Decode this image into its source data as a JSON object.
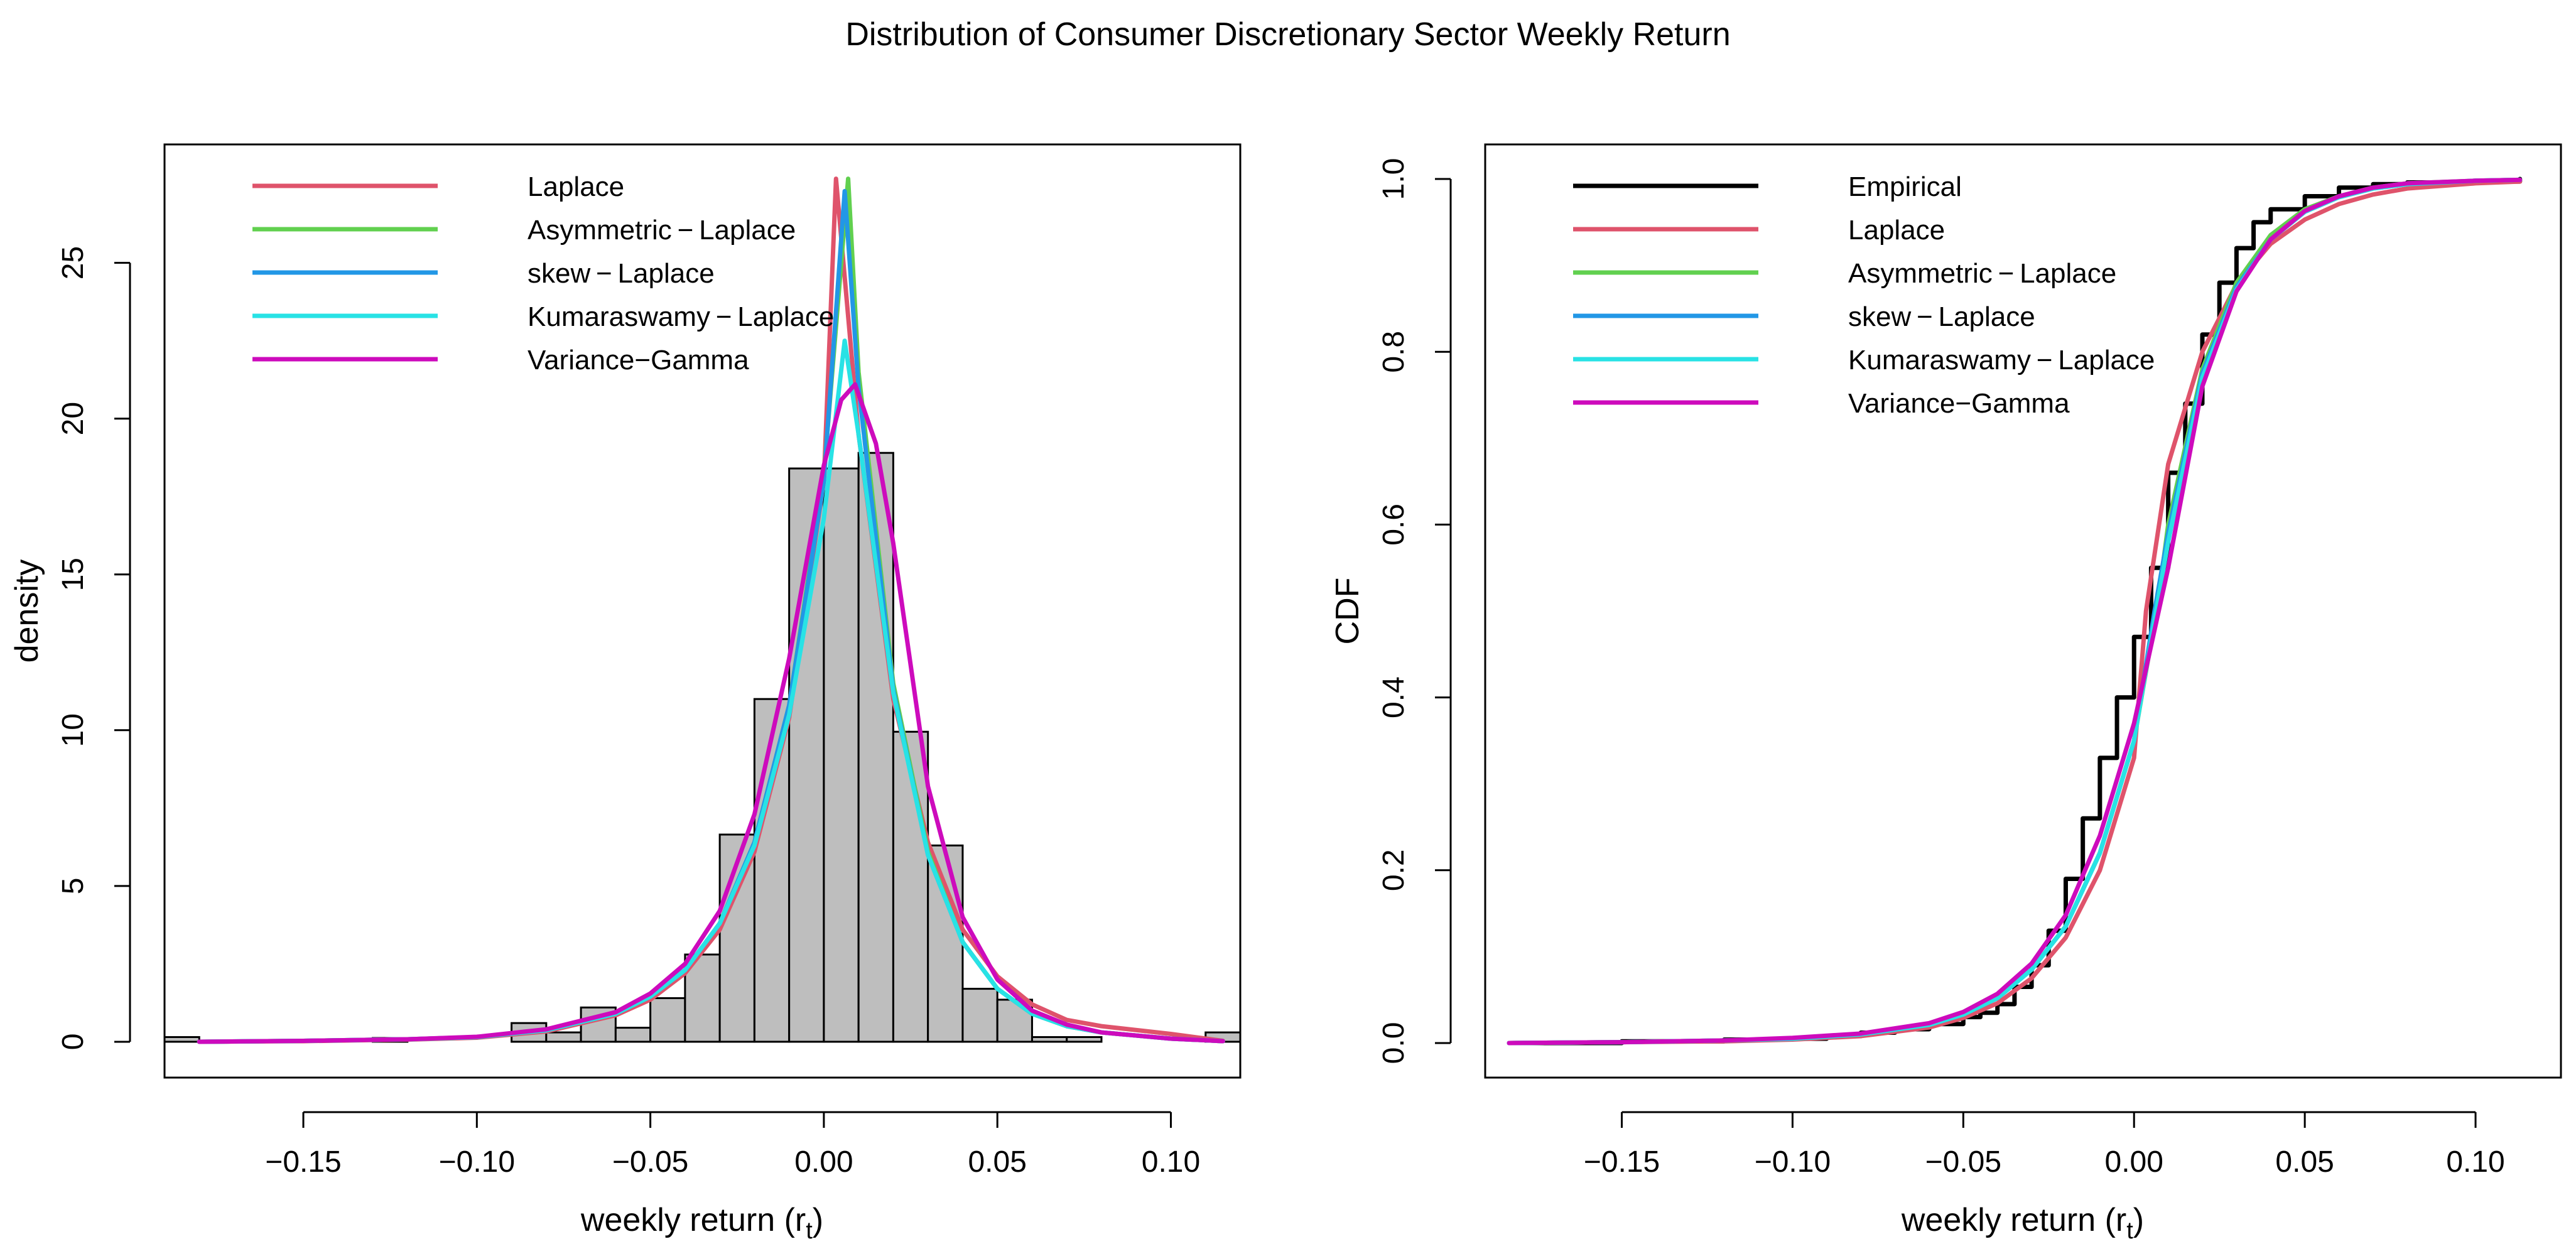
{
  "title": "Distribution of Consumer Discretionary Sector Weekly Return",
  "colors": {
    "Empirical": "#000000",
    "Laplace": "#DF536B",
    "Asymmetric-Laplace": "#61D04F",
    "skew-Laplace": "#2297E6",
    "Kumaraswamy-Laplace": "#28E2E5",
    "Variance-Gamma": "#CD0BBC",
    "histogram_fill": "#BEBEBE"
  },
  "chart_data": [
    {
      "type": "bar",
      "panel": "density",
      "xlabel": "weekly return",
      "xlabel_symbol": "r",
      "xlabel_subscript": "t",
      "ylabel": "density",
      "xlim": [
        -0.19,
        0.12
      ],
      "ylim": [
        -1.15,
        28.8
      ],
      "xticks": [
        -0.15,
        -0.1,
        -0.05,
        0.0,
        0.05,
        0.1
      ],
      "xtick_labels": [
        "−0.15",
        "−0.10",
        "−0.05",
        "0.00",
        "0.05",
        "0.10"
      ],
      "yticks": [
        0,
        5,
        10,
        15,
        20,
        25
      ],
      "ytick_labels": [
        "0",
        "5",
        "10",
        "15",
        "20",
        "25"
      ],
      "grid": false,
      "legend_position": "top-left",
      "legend": [
        {
          "label": "Laplace",
          "key": "Laplace"
        },
        {
          "label": "Asymmetric − Laplace",
          "key": "Asymmetric-Laplace"
        },
        {
          "label": "skew − Laplace",
          "key": "skew-Laplace"
        },
        {
          "label": "Kumaraswamy − Laplace",
          "key": "Kumaraswamy-Laplace"
        },
        {
          "label": "Variance−Gamma",
          "key": "Variance-Gamma"
        }
      ],
      "histogram": {
        "bins": [
          [
            -0.19,
            -0.18,
            0.15
          ],
          [
            -0.18,
            -0.17,
            0
          ],
          [
            -0.17,
            -0.16,
            0
          ],
          [
            -0.16,
            -0.15,
            0
          ],
          [
            -0.15,
            -0.14,
            0
          ],
          [
            -0.14,
            -0.13,
            0
          ],
          [
            -0.13,
            -0.12,
            0.12
          ],
          [
            -0.12,
            -0.11,
            0
          ],
          [
            -0.11,
            -0.1,
            0
          ],
          [
            -0.1,
            -0.09,
            0
          ],
          [
            -0.09,
            -0.08,
            0.6
          ],
          [
            -0.08,
            -0.07,
            0.3
          ],
          [
            -0.07,
            -0.06,
            1.1
          ],
          [
            -0.06,
            -0.05,
            0.45
          ],
          [
            -0.05,
            -0.04,
            1.4
          ],
          [
            -0.04,
            -0.03,
            2.8
          ],
          [
            -0.03,
            -0.02,
            6.65
          ],
          [
            -0.02,
            -0.01,
            11.0
          ],
          [
            -0.01,
            0.0,
            18.4
          ],
          [
            0.0,
            0.01,
            18.4
          ],
          [
            0.01,
            0.02,
            18.9
          ],
          [
            0.02,
            0.03,
            9.95
          ],
          [
            0.03,
            0.04,
            6.3
          ],
          [
            0.04,
            0.05,
            1.7
          ],
          [
            0.05,
            0.06,
            1.35
          ],
          [
            0.06,
            0.07,
            0.15
          ],
          [
            0.07,
            0.08,
            0.15
          ],
          [
            0.08,
            0.09,
            0
          ],
          [
            0.09,
            0.1,
            0
          ],
          [
            0.1,
            0.11,
            0
          ],
          [
            0.11,
            0.12,
            0.3
          ]
        ]
      },
      "series": [
        {
          "name": "Laplace",
          "key": "Laplace",
          "x": [
            -0.18,
            -0.15,
            -0.12,
            -0.1,
            -0.08,
            -0.06,
            -0.05,
            -0.04,
            -0.03,
            -0.02,
            -0.01,
            0.0,
            0.0035,
            0.01,
            0.02,
            0.03,
            0.04,
            0.05,
            0.06,
            0.07,
            0.08,
            0.1,
            0.115
          ],
          "y": [
            0.0,
            0.02,
            0.07,
            0.13,
            0.33,
            0.85,
            1.35,
            2.2,
            3.6,
            6.1,
            10.4,
            18.0,
            27.7,
            19.5,
            11.0,
            6.4,
            3.6,
            2.1,
            1.2,
            0.7,
            0.5,
            0.25,
            0.03
          ]
        },
        {
          "name": "Asymmetric − Laplace",
          "key": "Asymmetric-Laplace",
          "x": [
            -0.18,
            -0.15,
            -0.12,
            -0.1,
            -0.08,
            -0.06,
            -0.05,
            -0.04,
            -0.03,
            -0.02,
            -0.01,
            0.0,
            0.007,
            0.01,
            0.02,
            0.03,
            0.04,
            0.05,
            0.06,
            0.07,
            0.08,
            0.1,
            0.115
          ],
          "y": [
            0.0,
            0.03,
            0.08,
            0.15,
            0.37,
            0.9,
            1.45,
            2.3,
            3.8,
            6.4,
            10.8,
            18.2,
            27.7,
            21.5,
            11.5,
            6.1,
            3.2,
            1.7,
            0.9,
            0.5,
            0.3,
            0.1,
            0.02
          ]
        },
        {
          "name": "skew − Laplace",
          "key": "skew-Laplace",
          "x": [
            -0.18,
            -0.15,
            -0.12,
            -0.1,
            -0.08,
            -0.06,
            -0.05,
            -0.04,
            -0.03,
            -0.02,
            -0.01,
            0.0,
            0.006,
            0.01,
            0.02,
            0.03,
            0.04,
            0.05,
            0.06,
            0.07,
            0.08,
            0.1,
            0.115
          ],
          "y": [
            0.0,
            0.03,
            0.08,
            0.15,
            0.37,
            0.9,
            1.45,
            2.3,
            3.8,
            6.4,
            10.8,
            18.0,
            27.3,
            21.0,
            11.3,
            6.0,
            3.2,
            1.7,
            0.9,
            0.5,
            0.3,
            0.1,
            0.02
          ]
        },
        {
          "name": "Kumaraswamy − Laplace",
          "key": "Kumaraswamy-Laplace",
          "x": [
            -0.18,
            -0.15,
            -0.12,
            -0.1,
            -0.08,
            -0.06,
            -0.05,
            -0.04,
            -0.03,
            -0.02,
            -0.01,
            0.0,
            0.006,
            0.01,
            0.02,
            0.03,
            0.04,
            0.05,
            0.06,
            0.07,
            0.08,
            0.1,
            0.115
          ],
          "y": [
            0.0,
            0.03,
            0.08,
            0.15,
            0.37,
            0.9,
            1.45,
            2.3,
            3.8,
            6.3,
            10.5,
            16.8,
            22.5,
            19.5,
            11.2,
            6.0,
            3.2,
            1.7,
            0.9,
            0.5,
            0.3,
            0.1,
            0.02
          ]
        },
        {
          "name": "Variance−Gamma",
          "key": "Variance-Gamma",
          "x": [
            -0.18,
            -0.15,
            -0.12,
            -0.1,
            -0.08,
            -0.06,
            -0.05,
            -0.04,
            -0.03,
            -0.02,
            -0.01,
            0.0,
            0.005,
            0.009,
            0.015,
            0.02,
            0.03,
            0.04,
            0.05,
            0.06,
            0.07,
            0.08,
            0.1,
            0.115
          ],
          "y": [
            0.0,
            0.03,
            0.08,
            0.16,
            0.4,
            0.95,
            1.55,
            2.5,
            4.2,
            7.3,
            12.3,
            18.5,
            20.6,
            21.1,
            19.2,
            16.0,
            8.2,
            4.0,
            2.0,
            1.0,
            0.55,
            0.3,
            0.1,
            0.02
          ]
        }
      ]
    },
    {
      "type": "line",
      "panel": "cdf",
      "xlabel": "weekly return",
      "xlabel_symbol": "r",
      "xlabel_subscript": "t",
      "ylabel": "CDF",
      "xlim": [
        -0.19,
        0.125
      ],
      "ylim": [
        -0.04,
        1.04
      ],
      "xticks": [
        -0.15,
        -0.1,
        -0.05,
        0.0,
        0.05,
        0.1
      ],
      "xtick_labels": [
        "−0.15",
        "−0.10",
        "−0.05",
        "0.00",
        "0.05",
        "0.10"
      ],
      "yticks": [
        0.0,
        0.2,
        0.4,
        0.6,
        0.8,
        1.0
      ],
      "ytick_labels": [
        "0.0",
        "0.2",
        "0.4",
        "0.6",
        "0.8",
        "1.0"
      ],
      "grid": false,
      "legend_position": "top-left",
      "legend": [
        {
          "label": "Empirical",
          "key": "Empirical"
        },
        {
          "label": "Laplace",
          "key": "Laplace"
        },
        {
          "label": "Asymmetric − Laplace",
          "key": "Asymmetric-Laplace"
        },
        {
          "label": "skew − Laplace",
          "key": "skew-Laplace"
        },
        {
          "label": "Kumaraswamy − Laplace",
          "key": "Kumaraswamy-Laplace"
        },
        {
          "label": "Variance−Gamma",
          "key": "Variance-Gamma"
        }
      ],
      "series": [
        {
          "name": "Empirical",
          "key": "Empirical",
          "x": [
            -0.183,
            -0.15,
            -0.12,
            -0.1,
            -0.09,
            -0.08,
            -0.07,
            -0.06,
            -0.05,
            -0.045,
            -0.04,
            -0.035,
            -0.03,
            -0.025,
            -0.02,
            -0.015,
            -0.01,
            -0.005,
            0.0,
            0.005,
            0.01,
            0.015,
            0.02,
            0.025,
            0.03,
            0.035,
            0.04,
            0.05,
            0.06,
            0.07,
            0.08,
            0.1,
            0.113
          ],
          "y": [
            0.0,
            0.002,
            0.004,
            0.005,
            0.008,
            0.012,
            0.016,
            0.022,
            0.03,
            0.035,
            0.045,
            0.065,
            0.09,
            0.13,
            0.19,
            0.26,
            0.33,
            0.4,
            0.47,
            0.55,
            0.66,
            0.74,
            0.82,
            0.88,
            0.92,
            0.95,
            0.965,
            0.98,
            0.99,
            0.994,
            0.996,
            0.997,
            1.0
          ]
        },
        {
          "name": "Laplace",
          "key": "Laplace",
          "x": [
            -0.183,
            -0.15,
            -0.12,
            -0.1,
            -0.08,
            -0.06,
            -0.05,
            -0.04,
            -0.03,
            -0.02,
            -0.01,
            0.0,
            0.0035,
            0.01,
            0.02,
            0.03,
            0.04,
            0.05,
            0.06,
            0.07,
            0.08,
            0.1,
            0.113
          ],
          "y": [
            0.0,
            0.001,
            0.002,
            0.004,
            0.008,
            0.018,
            0.029,
            0.046,
            0.075,
            0.122,
            0.2,
            0.33,
            0.5,
            0.67,
            0.8,
            0.878,
            0.925,
            0.953,
            0.971,
            0.982,
            0.989,
            0.995,
            0.997
          ]
        },
        {
          "name": "Asymmetric − Laplace",
          "key": "Asymmetric-Laplace",
          "x": [
            -0.183,
            -0.15,
            -0.12,
            -0.1,
            -0.08,
            -0.06,
            -0.05,
            -0.04,
            -0.03,
            -0.02,
            -0.01,
            0.0,
            0.007,
            0.01,
            0.02,
            0.03,
            0.04,
            0.05,
            0.06,
            0.07,
            0.08,
            0.1,
            0.113
          ],
          "y": [
            0.0,
            0.001,
            0.003,
            0.005,
            0.01,
            0.021,
            0.033,
            0.052,
            0.085,
            0.135,
            0.22,
            0.35,
            0.51,
            0.6,
            0.78,
            0.88,
            0.935,
            0.965,
            0.98,
            0.99,
            0.995,
            0.998,
            0.999
          ]
        },
        {
          "name": "skew − Laplace",
          "key": "skew-Laplace",
          "x": [
            -0.183,
            -0.15,
            -0.12,
            -0.1,
            -0.08,
            -0.06,
            -0.05,
            -0.04,
            -0.03,
            -0.02,
            -0.01,
            0.0,
            0.006,
            0.01,
            0.02,
            0.03,
            0.04,
            0.05,
            0.06,
            0.07,
            0.08,
            0.1,
            0.113
          ],
          "y": [
            0.0,
            0.001,
            0.003,
            0.005,
            0.01,
            0.021,
            0.033,
            0.052,
            0.085,
            0.135,
            0.22,
            0.35,
            0.5,
            0.59,
            0.775,
            0.875,
            0.93,
            0.962,
            0.979,
            0.989,
            0.994,
            0.998,
            0.999
          ]
        },
        {
          "name": "Kumaraswamy − Laplace",
          "key": "Kumaraswamy-Laplace",
          "x": [
            -0.183,
            -0.15,
            -0.12,
            -0.1,
            -0.08,
            -0.06,
            -0.05,
            -0.04,
            -0.03,
            -0.02,
            -0.01,
            0.0,
            0.006,
            0.01,
            0.02,
            0.03,
            0.04,
            0.05,
            0.06,
            0.07,
            0.08,
            0.1,
            0.113
          ],
          "y": [
            0.0,
            0.001,
            0.003,
            0.005,
            0.01,
            0.021,
            0.033,
            0.052,
            0.085,
            0.135,
            0.22,
            0.35,
            0.49,
            0.58,
            0.77,
            0.872,
            0.93,
            0.962,
            0.979,
            0.989,
            0.994,
            0.998,
            0.999
          ]
        },
        {
          "name": "Variance−Gamma",
          "key": "Variance-Gamma",
          "x": [
            -0.183,
            -0.15,
            -0.12,
            -0.1,
            -0.08,
            -0.06,
            -0.05,
            -0.04,
            -0.03,
            -0.02,
            -0.01,
            0.0,
            0.01,
            0.02,
            0.03,
            0.04,
            0.05,
            0.06,
            0.07,
            0.08,
            0.1,
            0.113
          ],
          "y": [
            0.0,
            0.001,
            0.003,
            0.006,
            0.011,
            0.023,
            0.036,
            0.057,
            0.092,
            0.148,
            0.24,
            0.37,
            0.55,
            0.76,
            0.87,
            0.93,
            0.963,
            0.98,
            0.99,
            0.995,
            0.998,
            0.999
          ]
        }
      ]
    }
  ]
}
